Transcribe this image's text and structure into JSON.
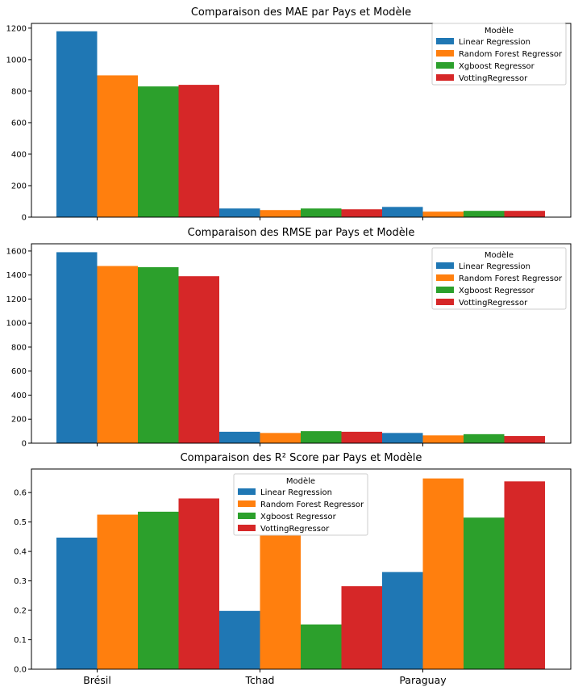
{
  "colors": {
    "Linear Regression": "#1f77b4",
    "Random Forest Regressor": "#ff7f0e",
    "Xgboost Regressor": "#2ca02c",
    "VottingRegressor": "#d62728"
  },
  "chart_data": [
    {
      "type": "bar",
      "title": "Comparaison des MAE par Pays et Modèle",
      "categories": [
        "Brésil",
        "Tchad",
        "Paraguay"
      ],
      "ylim": [
        0,
        1230
      ],
      "yticks": [
        0,
        200,
        400,
        600,
        800,
        1000,
        1200
      ],
      "ytick_labels": [
        "0",
        "200",
        "400",
        "600",
        "800",
        "1000",
        "1200"
      ],
      "show_xtick_labels": false,
      "legend": {
        "title": "Modèle",
        "placement": "top-right"
      },
      "series": [
        {
          "name": "Linear Regression",
          "values": [
            1180,
            55,
            65
          ]
        },
        {
          "name": "Random Forest Regressor",
          "values": [
            900,
            45,
            35
          ]
        },
        {
          "name": "Xgboost Regressor",
          "values": [
            830,
            55,
            40
          ]
        },
        {
          "name": "VottingRegressor",
          "values": [
            840,
            50,
            40
          ]
        }
      ]
    },
    {
      "type": "bar",
      "title": "Comparaison des RMSE par Pays et Modèle",
      "categories": [
        "Brésil",
        "Tchad",
        "Paraguay"
      ],
      "ylim": [
        0,
        1660
      ],
      "yticks": [
        0,
        200,
        400,
        600,
        800,
        1000,
        1200,
        1400,
        1600
      ],
      "ytick_labels": [
        "0",
        "200",
        "400",
        "600",
        "800",
        "1000",
        "1200",
        "1400",
        "1600"
      ],
      "show_xtick_labels": false,
      "legend": {
        "title": "Modèle",
        "placement": "top-right"
      },
      "series": [
        {
          "name": "Linear Regression",
          "values": [
            1590,
            95,
            85
          ]
        },
        {
          "name": "Random Forest Regressor",
          "values": [
            1475,
            85,
            65
          ]
        },
        {
          "name": "Xgboost Regressor",
          "values": [
            1465,
            100,
            75
          ]
        },
        {
          "name": "VottingRegressor",
          "values": [
            1390,
            95,
            60
          ]
        }
      ]
    },
    {
      "type": "bar",
      "title": "Comparaison des R² Score par Pays et Modèle",
      "categories": [
        "Brésil",
        "Tchad",
        "Paraguay"
      ],
      "ylim": [
        0,
        0.68
      ],
      "yticks": [
        0,
        0.1,
        0.2,
        0.3,
        0.4,
        0.5,
        0.6
      ],
      "ytick_labels": [
        "0.0",
        "0.1",
        "0.2",
        "0.3",
        "0.4",
        "0.5",
        "0.6"
      ],
      "show_xtick_labels": true,
      "legend": {
        "title": "Modèle",
        "placement": "top-center"
      },
      "series": [
        {
          "name": "Linear Regression",
          "values": [
            0.447,
            0.198,
            0.33
          ]
        },
        {
          "name": "Random Forest Regressor",
          "values": [
            0.525,
            0.456,
            0.648
          ]
        },
        {
          "name": "Xgboost Regressor",
          "values": [
            0.535,
            0.152,
            0.515
          ]
        },
        {
          "name": "VottingRegressor",
          "values": [
            0.58,
            0.282,
            0.638
          ]
        }
      ]
    }
  ]
}
